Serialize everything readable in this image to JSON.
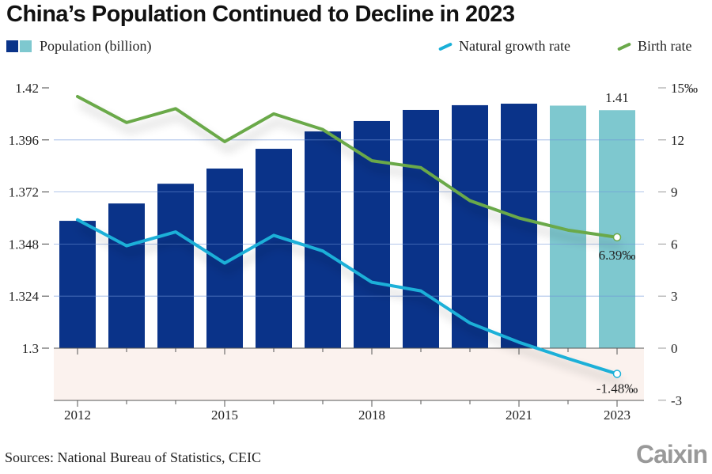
{
  "title": "China’s Population Continued to Decline in 2023",
  "legend": {
    "population": "Population (billion)",
    "natural_growth": "Natural growth rate",
    "birth_rate": "Birth rate"
  },
  "source": "Sources: National Bureau of Statistics, CEIC",
  "logo": "Caixin",
  "colors": {
    "bar_dark": "#0a3389",
    "bar_light": "#7ec8cf",
    "natural_growth": "#1ab0d8",
    "birth_rate": "#6aa94a",
    "negative_band": "#fbf2ee"
  },
  "chart_data": {
    "type": "bar+line",
    "title": "China’s Population Continued to Decline in 2023",
    "categories": [
      "2012",
      "2013",
      "2014",
      "2015",
      "2016",
      "2017",
      "2018",
      "2019",
      "2020",
      "2021",
      "2022",
      "2023"
    ],
    "x_tick_labels": [
      "2012",
      "2015",
      "2018",
      "2021",
      "2023"
    ],
    "left_axis": {
      "label": "Population (billion)",
      "ylim": [
        1.3,
        1.42
      ],
      "ticks": [
        "1.3",
        "1.324",
        "1.348",
        "1.372",
        "1.396",
        "1.42"
      ]
    },
    "right_axis": {
      "label": "‰",
      "ylim": [
        -3,
        15
      ],
      "ticks": [
        "-3",
        "0",
        "3",
        "6",
        "9",
        "12",
        "15‰"
      ]
    },
    "series": [
      {
        "name": "Population (billion)",
        "type": "bar",
        "axis": "left",
        "values": [
          1.3587,
          1.3667,
          1.3758,
          1.3828,
          1.3919,
          1.3999,
          1.4047,
          1.4098,
          1.412,
          1.4127,
          1.4118,
          1.4097
        ],
        "highlight_last": 2
      },
      {
        "name": "Natural growth rate",
        "type": "line",
        "axis": "right",
        "values": [
          7.4,
          5.9,
          6.7,
          4.9,
          6.5,
          5.6,
          3.8,
          3.3,
          1.45,
          0.34,
          -0.6,
          -1.48
        ]
      },
      {
        "name": "Birth rate",
        "type": "line",
        "axis": "right",
        "values": [
          14.5,
          13.0,
          13.8,
          11.9,
          13.5,
          12.6,
          10.8,
          10.4,
          8.5,
          7.5,
          6.8,
          6.39
        ]
      }
    ],
    "annotations": [
      {
        "series": "Population (billion)",
        "category": "2023",
        "text": "1.41"
      },
      {
        "series": "Birth rate",
        "category": "2023",
        "text": "6.39‰"
      },
      {
        "series": "Natural growth rate",
        "category": "2023",
        "text": "-1.48‰"
      }
    ],
    "grid": true,
    "legend_position": "top"
  }
}
